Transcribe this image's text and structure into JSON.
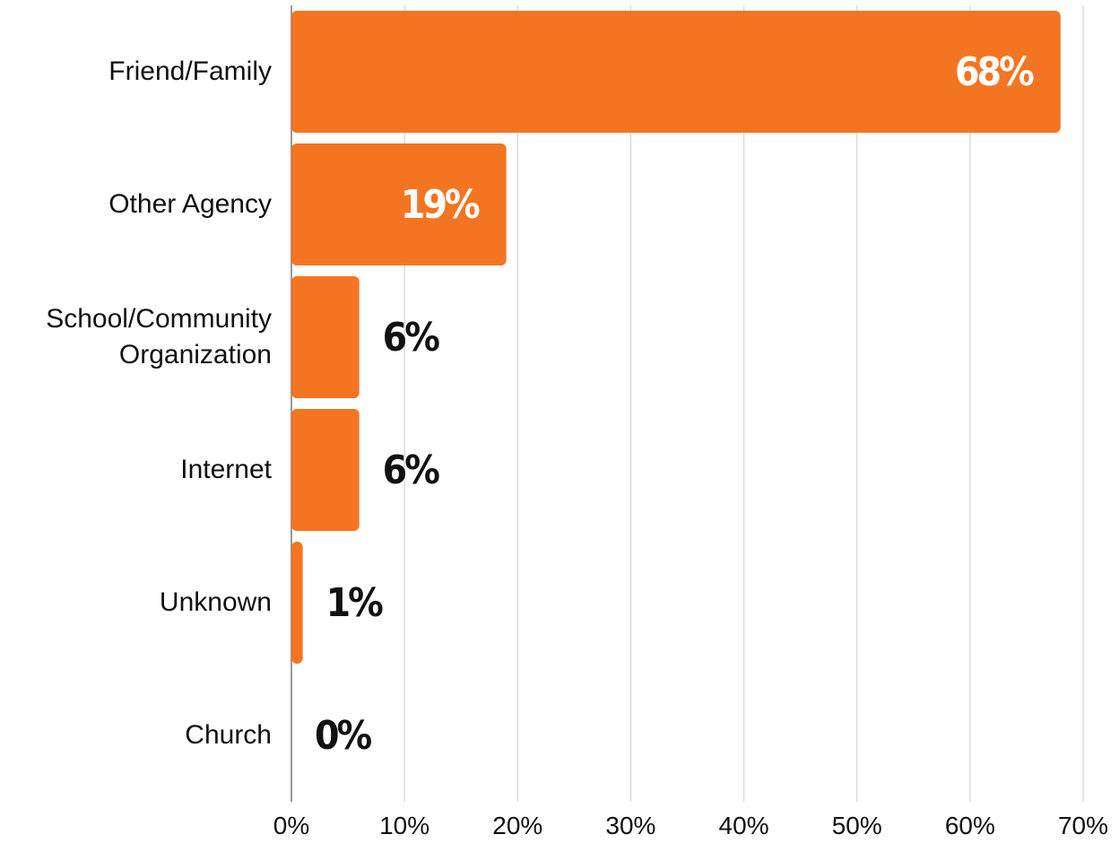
{
  "chart_data": {
    "type": "bar",
    "orientation": "horizontal",
    "categories": [
      "Friend/Family",
      "Other Agency",
      "School/Community Organization",
      "Internet",
      "Unknown",
      "Church"
    ],
    "values": [
      68,
      19,
      6,
      6,
      1,
      0
    ],
    "value_labels": [
      "68%",
      "19%",
      "6%",
      "6%",
      "1%",
      "0%"
    ],
    "color": "#f47521",
    "xlim": [
      0,
      70
    ],
    "xticks": [
      {
        "value": 0,
        "label": "0%"
      },
      {
        "value": 10,
        "label": "10%"
      },
      {
        "value": 20,
        "label": "20%"
      },
      {
        "value": 30,
        "label": "30%"
      },
      {
        "value": 40,
        "label": "40%"
      },
      {
        "value": 50,
        "label": "50%"
      },
      {
        "value": 60,
        "label": "60%"
      },
      {
        "value": 70,
        "label": "70%"
      }
    ],
    "grid": true
  }
}
